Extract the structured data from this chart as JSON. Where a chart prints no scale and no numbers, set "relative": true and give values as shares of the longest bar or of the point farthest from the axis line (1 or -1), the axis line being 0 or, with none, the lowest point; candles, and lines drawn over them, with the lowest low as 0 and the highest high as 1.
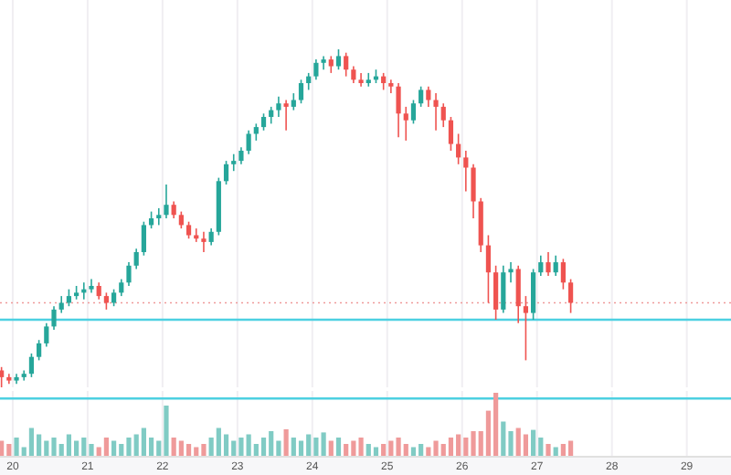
{
  "chart_data": [
    {
      "type": "candlestick",
      "relative": true,
      "grid": "x",
      "tick_labels": false,
      "xlim": [
        19.83,
        29.59
      ],
      "xticks": [
        20,
        21,
        22,
        23,
        24,
        25,
        26,
        27,
        28,
        29
      ],
      "x": [
        19.85,
        19.95,
        20.05,
        20.15,
        20.25,
        20.35,
        20.45,
        20.55,
        20.65,
        20.75,
        20.85,
        20.95,
        21.05,
        21.15,
        21.25,
        21.35,
        21.45,
        21.55,
        21.65,
        21.75,
        21.85,
        21.95,
        22.05,
        22.15,
        22.25,
        22.35,
        22.45,
        22.55,
        22.65,
        22.75,
        22.85,
        22.95,
        23.05,
        23.15,
        23.25,
        23.35,
        23.45,
        23.55,
        23.65,
        23.75,
        23.85,
        23.95,
        24.05,
        24.15,
        24.25,
        24.35,
        24.45,
        24.55,
        24.65,
        24.75,
        24.85,
        24.95,
        25.05,
        25.15,
        25.25,
        25.35,
        25.45,
        25.55,
        25.65,
        25.75,
        25.85,
        25.95,
        26.05,
        26.15,
        26.25,
        26.35,
        26.45,
        26.55,
        26.65,
        26.75,
        26.85,
        26.95,
        27.05,
        27.15,
        27.25,
        27.35,
        27.45
      ],
      "ohlc": [
        [
          0.05,
          0.06,
          0,
          0.03
        ],
        [
          0.03,
          0.04,
          0.01,
          0.02
        ],
        [
          0.02,
          0.04,
          0.01,
          0.03
        ],
        [
          0.03,
          0.05,
          0.02,
          0.04
        ],
        [
          0.04,
          0.1,
          0.03,
          0.09
        ],
        [
          0.09,
          0.14,
          0.08,
          0.13
        ],
        [
          0.13,
          0.19,
          0.12,
          0.18
        ],
        [
          0.18,
          0.24,
          0.17,
          0.23
        ],
        [
          0.23,
          0.27,
          0.22,
          0.25
        ],
        [
          0.25,
          0.29,
          0.24,
          0.27
        ],
        [
          0.27,
          0.3,
          0.26,
          0.28
        ],
        [
          0.28,
          0.31,
          0.26,
          0.29
        ],
        [
          0.29,
          0.32,
          0.28,
          0.3
        ],
        [
          0.3,
          0.31,
          0.26,
          0.27
        ],
        [
          0.27,
          0.28,
          0.23,
          0.25
        ],
        [
          0.25,
          0.29,
          0.24,
          0.28
        ],
        [
          0.28,
          0.32,
          0.27,
          0.31
        ],
        [
          0.31,
          0.37,
          0.3,
          0.36
        ],
        [
          0.36,
          0.41,
          0.35,
          0.4
        ],
        [
          0.4,
          0.49,
          0.39,
          0.48
        ],
        [
          0.48,
          0.52,
          0.47,
          0.5
        ],
        [
          0.5,
          0.53,
          0.48,
          0.51
        ],
        [
          0.51,
          0.6,
          0.5,
          0.54
        ],
        [
          0.54,
          0.55,
          0.5,
          0.51
        ],
        [
          0.51,
          0.52,
          0.47,
          0.48
        ],
        [
          0.48,
          0.49,
          0.44,
          0.45
        ],
        [
          0.45,
          0.47,
          0.43,
          0.44
        ],
        [
          0.44,
          0.46,
          0.4,
          0.43
        ],
        [
          0.43,
          0.47,
          0.42,
          0.46
        ],
        [
          0.46,
          0.62,
          0.45,
          0.61
        ],
        [
          0.61,
          0.67,
          0.6,
          0.66
        ],
        [
          0.66,
          0.69,
          0.64,
          0.67
        ],
        [
          0.67,
          0.71,
          0.66,
          0.7
        ],
        [
          0.7,
          0.76,
          0.69,
          0.75
        ],
        [
          0.75,
          0.78,
          0.73,
          0.77
        ],
        [
          0.77,
          0.81,
          0.76,
          0.8
        ],
        [
          0.8,
          0.83,
          0.78,
          0.82
        ],
        [
          0.82,
          0.86,
          0.8,
          0.84
        ],
        [
          0.84,
          0.85,
          0.76,
          0.83
        ],
        [
          0.83,
          0.87,
          0.82,
          0.85
        ],
        [
          0.85,
          0.91,
          0.84,
          0.9
        ],
        [
          0.9,
          0.93,
          0.88,
          0.92
        ],
        [
          0.92,
          0.97,
          0.91,
          0.96
        ],
        [
          0.96,
          0.98,
          0.94,
          0.97
        ],
        [
          0.97,
          0.98,
          0.93,
          0.95
        ],
        [
          0.95,
          1,
          0.94,
          0.98
        ],
        [
          0.98,
          0.99,
          0.92,
          0.94
        ],
        [
          0.94,
          0.95,
          0.9,
          0.91
        ],
        [
          0.91,
          0.93,
          0.89,
          0.9
        ],
        [
          0.9,
          0.93,
          0.89,
          0.91
        ],
        [
          0.91,
          0.94,
          0.9,
          0.92
        ],
        [
          0.92,
          0.93,
          0.88,
          0.9
        ],
        [
          0.9,
          0.91,
          0.87,
          0.89
        ],
        [
          0.89,
          0.9,
          0.74,
          0.81
        ],
        [
          0.81,
          0.83,
          0.73,
          0.79
        ],
        [
          0.79,
          0.85,
          0.78,
          0.84
        ],
        [
          0.84,
          0.89,
          0.83,
          0.88
        ],
        [
          0.88,
          0.89,
          0.83,
          0.85
        ],
        [
          0.85,
          0.87,
          0.76,
          0.83
        ],
        [
          0.83,
          0.84,
          0.77,
          0.79
        ],
        [
          0.79,
          0.8,
          0.7,
          0.72
        ],
        [
          0.72,
          0.75,
          0.66,
          0.68
        ],
        [
          0.68,
          0.7,
          0.58,
          0.65
        ],
        [
          0.65,
          0.66,
          0.5,
          0.55
        ],
        [
          0.55,
          0.56,
          0.4,
          0.42
        ],
        [
          0.42,
          0.45,
          0.25,
          0.34
        ],
        [
          0.34,
          0.36,
          0.2,
          0.23
        ],
        [
          0.23,
          0.36,
          0.22,
          0.34
        ],
        [
          0.34,
          0.37,
          0.31,
          0.35
        ],
        [
          0.35,
          0.36,
          0.19,
          0.24
        ],
        [
          0.24,
          0.27,
          0.08,
          0.22
        ],
        [
          0.22,
          0.35,
          0.2,
          0.34
        ],
        [
          0.34,
          0.39,
          0.33,
          0.37
        ],
        [
          0.37,
          0.4,
          0.33,
          0.34
        ],
        [
          0.34,
          0.39,
          0.33,
          0.37
        ],
        [
          0.37,
          0.38,
          0.29,
          0.31
        ],
        [
          0.31,
          0.32,
          0.22,
          0.25
        ]
      ],
      "ref_lines": [
        {
          "axis": "y",
          "value": 0.2,
          "color": "#4dd0e1"
        },
        {
          "axis": "y",
          "value": 0.25,
          "color": "#ef9a9a",
          "line_style": "dotted"
        }
      ]
    },
    {
      "type": "bar",
      "relative": true,
      "grid": "x",
      "tick_labels": "x",
      "xlim": [
        19.83,
        29.59
      ],
      "xticks": [
        20,
        21,
        22,
        23,
        24,
        25,
        26,
        27,
        28,
        29
      ],
      "x": [
        19.85,
        19.95,
        20.05,
        20.15,
        20.25,
        20.35,
        20.45,
        20.55,
        20.65,
        20.75,
        20.85,
        20.95,
        21.05,
        21.15,
        21.25,
        21.35,
        21.45,
        21.55,
        21.65,
        21.75,
        21.85,
        21.95,
        22.05,
        22.15,
        22.25,
        22.35,
        22.45,
        22.55,
        22.65,
        22.75,
        22.85,
        22.95,
        23.05,
        23.15,
        23.25,
        23.35,
        23.45,
        23.55,
        23.65,
        23.75,
        23.85,
        23.95,
        24.05,
        24.15,
        24.25,
        24.35,
        24.45,
        24.55,
        24.65,
        24.75,
        24.85,
        24.95,
        25.05,
        25.15,
        25.25,
        25.35,
        25.45,
        25.55,
        25.65,
        25.75,
        25.85,
        25.95,
        26.05,
        26.15,
        26.25,
        26.35,
        26.45,
        26.55,
        26.65,
        26.75,
        26.85,
        26.95,
        27.05,
        27.15,
        27.25,
        27.35,
        27.45
      ],
      "values": [
        0.25,
        0.2,
        0.3,
        0.15,
        0.45,
        0.35,
        0.25,
        0.3,
        0.2,
        0.35,
        0.25,
        0.3,
        0.2,
        0.15,
        0.3,
        0.25,
        0.2,
        0.3,
        0.35,
        0.45,
        0.3,
        0.25,
        0.8,
        0.3,
        0.25,
        0.2,
        0.15,
        0.2,
        0.3,
        0.45,
        0.35,
        0.25,
        0.3,
        0.35,
        0.2,
        0.3,
        0.4,
        0.25,
        0.43,
        0.3,
        0.25,
        0.35,
        0.3,
        0.38,
        0.25,
        0.3,
        0.2,
        0.25,
        0.3,
        0.2,
        0.15,
        0.2,
        0.25,
        0.3,
        0.2,
        0.15,
        0.2,
        0.15,
        0.25,
        0.2,
        0.3,
        0.35,
        0.3,
        0.4,
        0.4,
        0.72,
        1,
        0.55,
        0.4,
        0.45,
        0.35,
        0.42,
        0.3,
        0.2,
        0.15,
        0.2,
        0.25
      ],
      "colors": [
        "#ef9a9a",
        "#ef9a9a",
        "#80cbc4",
        "#80cbc4",
        "#80cbc4",
        "#80cbc4",
        "#80cbc4",
        "#80cbc4",
        "#80cbc4",
        "#80cbc4",
        "#80cbc4",
        "#80cbc4",
        "#80cbc4",
        "#ef9a9a",
        "#ef9a9a",
        "#80cbc4",
        "#80cbc4",
        "#80cbc4",
        "#80cbc4",
        "#80cbc4",
        "#80cbc4",
        "#80cbc4",
        "#80cbc4",
        "#ef9a9a",
        "#ef9a9a",
        "#ef9a9a",
        "#ef9a9a",
        "#ef9a9a",
        "#80cbc4",
        "#80cbc4",
        "#80cbc4",
        "#80cbc4",
        "#80cbc4",
        "#80cbc4",
        "#80cbc4",
        "#80cbc4",
        "#80cbc4",
        "#80cbc4",
        "#ef9a9a",
        "#80cbc4",
        "#80cbc4",
        "#80cbc4",
        "#80cbc4",
        "#80cbc4",
        "#ef9a9a",
        "#80cbc4",
        "#ef9a9a",
        "#ef9a9a",
        "#ef9a9a",
        "#80cbc4",
        "#80cbc4",
        "#ef9a9a",
        "#ef9a9a",
        "#ef9a9a",
        "#ef9a9a",
        "#80cbc4",
        "#80cbc4",
        "#ef9a9a",
        "#ef9a9a",
        "#ef9a9a",
        "#ef9a9a",
        "#ef9a9a",
        "#ef9a9a",
        "#ef9a9a",
        "#ef9a9a",
        "#ef9a9a",
        "#ef9a9a",
        "#80cbc4",
        "#80cbc4",
        "#ef9a9a",
        "#ef9a9a",
        "#80cbc4",
        "#80cbc4",
        "#ef9a9a",
        "#80cbc4",
        "#ef9a9a",
        "#ef9a9a"
      ],
      "ref_lines": [
        {
          "axis": "y",
          "value": 0.91,
          "color": "#4dd0e1"
        }
      ]
    }
  ]
}
